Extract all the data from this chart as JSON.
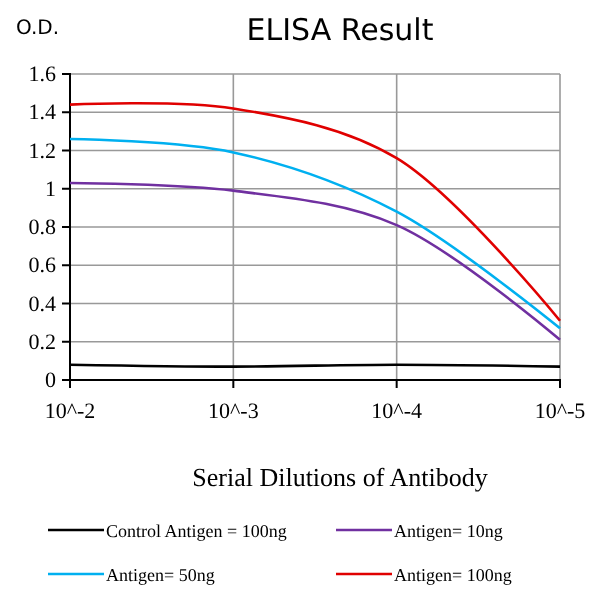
{
  "chart_data": {
    "type": "line",
    "title": "ELISA Result",
    "ylabel": "O.D.",
    "xlabel": "Serial Dilutions of Antibody",
    "categories": [
      "10^-2",
      "10^-3",
      "10^-4",
      "10^-5"
    ],
    "series": [
      {
        "name": "Control Antigen = 100ng",
        "color": "#000000",
        "values": [
          0.08,
          0.07,
          0.08,
          0.07
        ]
      },
      {
        "name": "Antigen= 10ng",
        "color": "#7030a0",
        "values": [
          1.03,
          0.99,
          0.81,
          0.21
        ]
      },
      {
        "name": "Antigen= 50ng",
        "color": "#00b0f0",
        "values": [
          1.26,
          1.19,
          0.88,
          0.27
        ]
      },
      {
        "name": "Antigen= 100ng",
        "color": "#e00000",
        "values": [
          1.44,
          1.42,
          1.16,
          0.31
        ]
      }
    ],
    "ylim": [
      0,
      1.6
    ],
    "yticks": [
      0,
      0.2,
      0.4,
      0.6,
      0.8,
      1,
      1.2,
      1.4,
      1.6
    ],
    "grid": true,
    "legend": "bottom",
    "marker": "none",
    "line_style": "solid"
  }
}
